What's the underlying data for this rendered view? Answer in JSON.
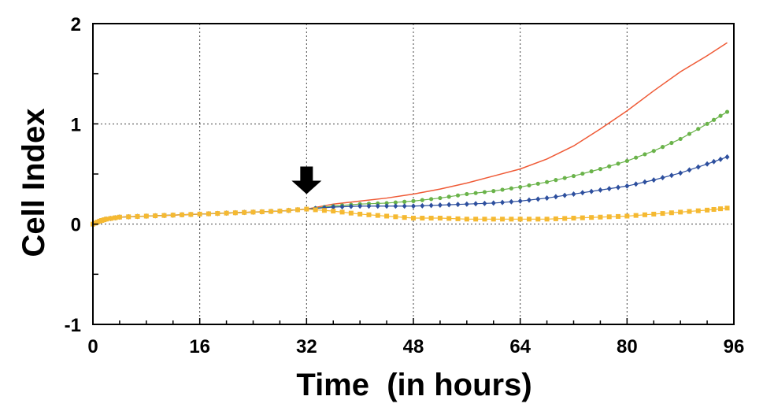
{
  "chart_data": {
    "type": "line",
    "title": "",
    "xlabel": "Time  (in hours)",
    "ylabel": "Cell Index",
    "xlim": [
      0,
      96
    ],
    "ylim": [
      -1,
      2
    ],
    "x_ticks": [
      0,
      16,
      32,
      48,
      64,
      80,
      96
    ],
    "y_ticks": [
      -1,
      0,
      1,
      2
    ],
    "x_tick_labels": [
      "0",
      "16",
      "32",
      "48",
      "64",
      "80",
      "96"
    ],
    "y_tick_labels": [
      "-1",
      "0",
      "1",
      "2"
    ],
    "grid": true,
    "annotation": {
      "type": "arrow-down",
      "x": 32,
      "y": 0.3
    },
    "series": [
      {
        "color": "#ef5a36",
        "marker": "none",
        "x": [
          0,
          1,
          2,
          4,
          8,
          12,
          16,
          20,
          24,
          28,
          32,
          36,
          40,
          44,
          48,
          52,
          56,
          60,
          64,
          68,
          72,
          76,
          80,
          84,
          88,
          92,
          95
        ],
        "y": [
          0.0,
          0.03,
          0.05,
          0.07,
          0.08,
          0.09,
          0.1,
          0.11,
          0.12,
          0.13,
          0.15,
          0.2,
          0.23,
          0.26,
          0.3,
          0.35,
          0.41,
          0.48,
          0.55,
          0.65,
          0.78,
          0.95,
          1.13,
          1.33,
          1.52,
          1.68,
          1.81
        ]
      },
      {
        "color": "#6ab34a",
        "marker": "dot",
        "x": [
          0,
          1,
          2,
          4,
          8,
          12,
          16,
          20,
          24,
          28,
          32,
          36,
          40,
          44,
          48,
          52,
          56,
          60,
          64,
          68,
          72,
          76,
          80,
          84,
          88,
          92,
          95
        ],
        "y": [
          0.0,
          0.03,
          0.05,
          0.07,
          0.08,
          0.09,
          0.1,
          0.11,
          0.12,
          0.13,
          0.15,
          0.18,
          0.2,
          0.21,
          0.23,
          0.26,
          0.3,
          0.33,
          0.37,
          0.42,
          0.48,
          0.55,
          0.63,
          0.73,
          0.85,
          1.0,
          1.12
        ]
      },
      {
        "color": "#2d4f9e",
        "marker": "diamond",
        "x": [
          0,
          1,
          2,
          4,
          8,
          12,
          16,
          20,
          24,
          28,
          32,
          36,
          40,
          44,
          48,
          52,
          56,
          60,
          64,
          68,
          72,
          76,
          80,
          84,
          88,
          92,
          95
        ],
        "y": [
          0.0,
          0.03,
          0.05,
          0.07,
          0.08,
          0.09,
          0.1,
          0.11,
          0.12,
          0.13,
          0.15,
          0.17,
          0.18,
          0.18,
          0.18,
          0.19,
          0.2,
          0.21,
          0.23,
          0.26,
          0.3,
          0.34,
          0.38,
          0.44,
          0.51,
          0.6,
          0.67
        ]
      },
      {
        "color": "#f5b931",
        "marker": "square",
        "x": [
          0,
          1,
          2,
          4,
          8,
          12,
          16,
          20,
          24,
          28,
          32,
          36,
          40,
          44,
          48,
          52,
          56,
          60,
          64,
          68,
          72,
          76,
          80,
          84,
          88,
          92,
          95
        ],
        "y": [
          0.0,
          0.03,
          0.05,
          0.07,
          0.08,
          0.09,
          0.1,
          0.11,
          0.12,
          0.13,
          0.15,
          0.13,
          0.1,
          0.08,
          0.06,
          0.06,
          0.05,
          0.05,
          0.05,
          0.05,
          0.06,
          0.07,
          0.08,
          0.1,
          0.12,
          0.14,
          0.16
        ]
      }
    ]
  }
}
